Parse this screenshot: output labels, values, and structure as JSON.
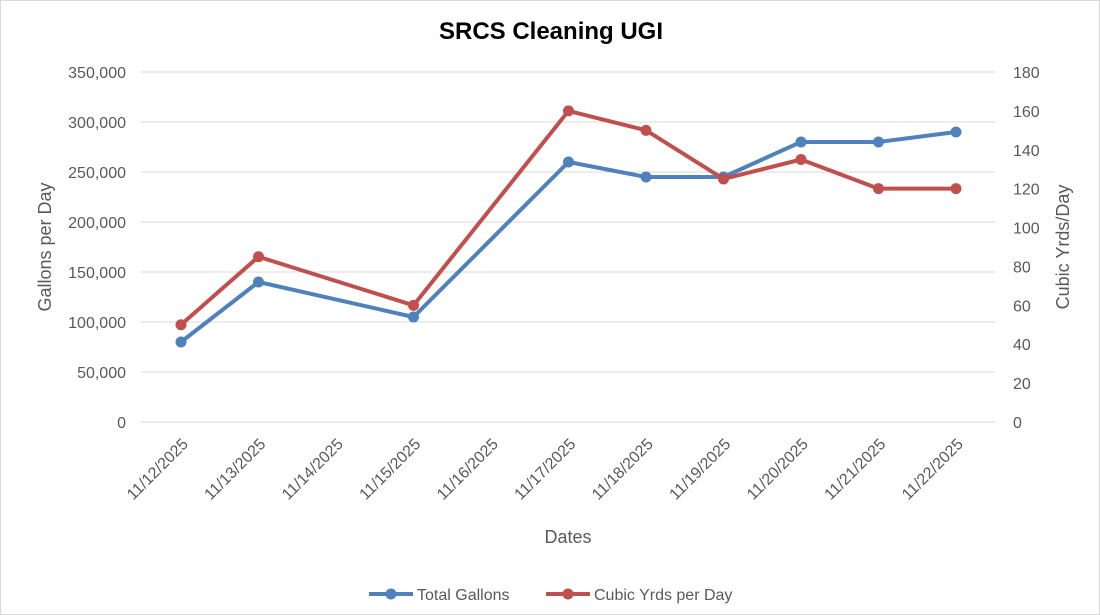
{
  "chart_data": {
    "type": "line",
    "title": "SRCS Cleaning UGI",
    "xlabel": "Dates",
    "ylabel": "Gallons per Day",
    "y2label": "Cubic Yrds/Day",
    "categories": [
      "11/12/2025",
      "11/13/2025",
      "11/14/2025",
      "11/15/2025",
      "11/16/2025",
      "11/17/2025",
      "11/18/2025",
      "11/19/2025",
      "11/20/2025",
      "11/21/2025",
      "11/22/2025"
    ],
    "ylim": [
      0,
      350000
    ],
    "yticks": [
      0,
      50000,
      100000,
      150000,
      200000,
      250000,
      300000,
      350000
    ],
    "ytick_labels": [
      "0",
      "50,000",
      "100,000",
      "150,000",
      "200,000",
      "250,000",
      "300,000",
      "350,000"
    ],
    "y2lim": [
      0,
      180
    ],
    "y2ticks": [
      0,
      20,
      40,
      60,
      80,
      100,
      120,
      140,
      160,
      180
    ],
    "y2tick_labels": [
      "0",
      "20",
      "40",
      "60",
      "80",
      "100",
      "120",
      "140",
      "160",
      "180"
    ],
    "grid": true,
    "legend_position": "bottom",
    "series": [
      {
        "name": "Total Gallons",
        "axis": "left",
        "color": "#4f81bd",
        "x": [
          "11/12/2025",
          "11/13/2025",
          "11/15/2025",
          "11/17/2025",
          "11/18/2025",
          "11/19/2025",
          "11/20/2025",
          "11/21/2025",
          "11/22/2025"
        ],
        "values": [
          80000,
          140000,
          105000,
          260000,
          245000,
          245000,
          280000,
          280000,
          290000
        ]
      },
      {
        "name": "Cubic Yrds per Day",
        "axis": "right",
        "color": "#c0504d",
        "x": [
          "11/12/2025",
          "11/13/2025",
          "11/15/2025",
          "11/17/2025",
          "11/18/2025",
          "11/19/2025",
          "11/20/2025",
          "11/21/2025",
          "11/22/2025"
        ],
        "values": [
          50,
          85,
          60,
          160,
          150,
          125,
          135,
          120,
          120
        ]
      }
    ]
  }
}
